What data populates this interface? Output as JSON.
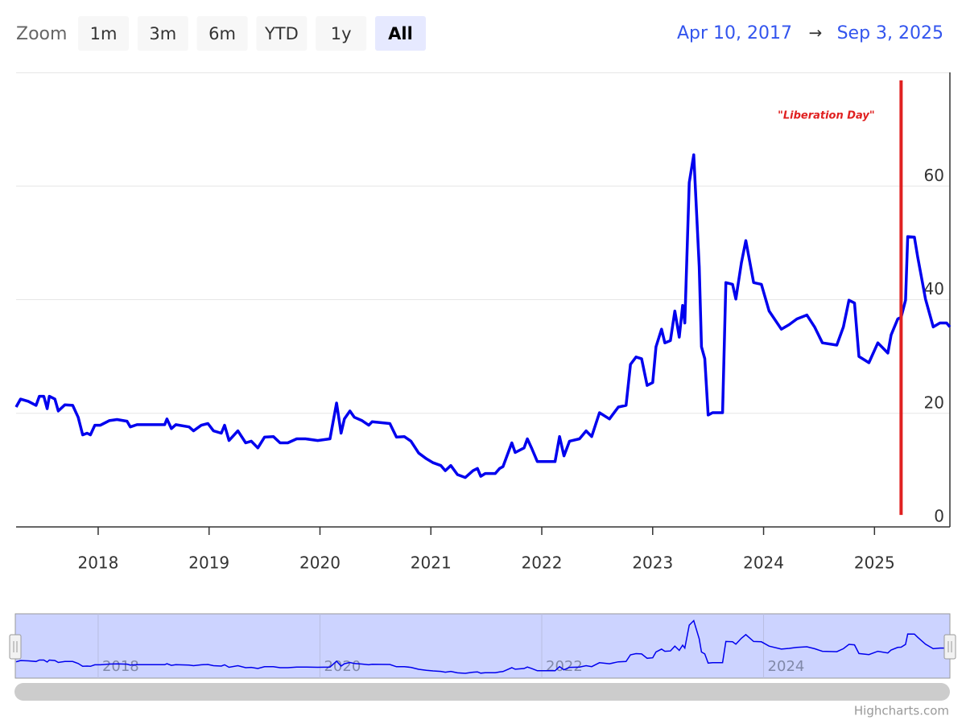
{
  "range_selector": {
    "label": "Zoom",
    "buttons": [
      "1m",
      "3m",
      "6m",
      "YTD",
      "1y",
      "All"
    ],
    "selected": 5,
    "from": "Apr 10, 2017",
    "arrow": "→",
    "to": "Sep 3, 2025"
  },
  "chart_data": {
    "type": "line",
    "x": [
      2017.26,
      2017.3,
      2017.37,
      2017.44,
      2017.47,
      2017.51,
      2017.54,
      2017.56,
      2017.61,
      2017.64,
      2017.7,
      2017.77,
      2017.82,
      2017.86,
      2017.9,
      2017.93,
      2017.97,
      2018.02,
      2018.1,
      2018.17,
      2018.26,
      2018.29,
      2018.35,
      2018.6,
      2018.62,
      2018.66,
      2018.7,
      2018.82,
      2018.86,
      2018.93,
      2018.99,
      2019.04,
      2019.11,
      2019.14,
      2019.18,
      2019.26,
      2019.33,
      2019.38,
      2019.44,
      2019.5,
      2019.58,
      2019.64,
      2019.71,
      2019.79,
      2019.87,
      2019.98,
      2020.09,
      2020.15,
      2020.19,
      2020.22,
      2020.27,
      2020.31,
      2020.38,
      2020.44,
      2020.47,
      2020.63,
      2020.69,
      2020.76,
      2020.82,
      2020.89,
      2020.96,
      2021.02,
      2021.09,
      2021.13,
      2021.18,
      2021.24,
      2021.31,
      2021.38,
      2021.42,
      2021.45,
      2021.49,
      2021.58,
      2021.62,
      2021.65,
      2021.73,
      2021.76,
      2021.84,
      2021.87,
      2021.91,
      2021.96,
      2022.12,
      2022.16,
      2022.2,
      2022.25,
      2022.34,
      2022.4,
      2022.45,
      2022.52,
      2022.61,
      2022.69,
      2022.76,
      2022.8,
      2022.85,
      2022.9,
      2022.95,
      2023.0,
      2023.03,
      2023.08,
      2023.11,
      2023.16,
      2023.2,
      2023.24,
      2023.27,
      2023.29,
      2023.33,
      2023.37,
      2023.42,
      2023.44,
      2023.47,
      2023.5,
      2023.54,
      2023.63,
      2023.66,
      2023.72,
      2023.75,
      2023.8,
      2023.84,
      2023.91,
      2023.98,
      2024.05,
      2024.16,
      2024.23,
      2024.3,
      2024.39,
      2024.46,
      2024.53,
      2024.66,
      2024.72,
      2024.77,
      2024.82,
      2024.86,
      2024.95,
      2025.03,
      2025.12,
      2025.15,
      2025.21,
      2025.24,
      2025.28,
      2025.3,
      2025.36,
      2025.39,
      2025.46,
      2025.53,
      2025.59,
      2025.65,
      2025.68
    ],
    "series": [
      {
        "color": "#0000ee",
        "values": [
          21.1,
          22.5,
          22.1,
          21.4,
          23.0,
          23.0,
          20.8,
          23.0,
          22.5,
          20.4,
          21.5,
          21.4,
          19.3,
          16.2,
          16.5,
          16.2,
          17.9,
          17.9,
          18.7,
          18.9,
          18.6,
          17.6,
          18.0,
          18.0,
          19.0,
          17.3,
          18.0,
          17.6,
          16.9,
          17.9,
          18.2,
          16.9,
          16.5,
          17.9,
          15.2,
          16.9,
          14.8,
          15.1,
          13.9,
          15.8,
          15.9,
          14.8,
          14.8,
          15.5,
          15.5,
          15.2,
          15.5,
          21.8,
          16.5,
          19.0,
          20.4,
          19.3,
          18.7,
          17.9,
          18.5,
          18.2,
          15.8,
          15.9,
          15.1,
          13.0,
          12.0,
          11.3,
          10.8,
          9.9,
          10.8,
          9.2,
          8.7,
          9.9,
          10.3,
          8.9,
          9.4,
          9.4,
          10.3,
          10.6,
          14.8,
          13.1,
          13.9,
          15.5,
          13.8,
          11.5,
          11.5,
          15.9,
          12.5,
          15.1,
          15.5,
          16.9,
          15.9,
          20.1,
          19.0,
          21.1,
          21.4,
          28.6,
          29.9,
          29.6,
          24.9,
          25.4,
          31.7,
          34.8,
          32.4,
          32.8,
          38.0,
          33.4,
          39.0,
          35.9,
          60.6,
          65.5,
          45.8,
          31.7,
          29.6,
          19.7,
          20.1,
          20.1,
          43.0,
          42.7,
          40.1,
          46.5,
          50.4,
          43.0,
          42.7,
          38.0,
          34.8,
          35.6,
          36.6,
          37.3,
          35.2,
          32.4,
          32.0,
          35.2,
          39.9,
          39.4,
          30.0,
          28.9,
          32.4,
          30.6,
          33.8,
          36.6,
          36.9,
          39.9,
          51.1,
          51.0,
          47.5,
          40.1,
          35.2,
          35.9,
          35.9,
          35.2
        ]
      }
    ],
    "xlim": [
      2017.26,
      2025.68
    ],
    "xticks": [
      2018,
      2019,
      2020,
      2021,
      2022,
      2023,
      2024,
      2025
    ],
    "ylim": [
      0,
      80
    ],
    "yticks": [
      0,
      20,
      40,
      60
    ],
    "grid": true,
    "annotation": {
      "x": 2025.24,
      "y_range": [
        2.1,
        78.6
      ],
      "text": "\"Liberation Day\"",
      "color": "#e02020"
    },
    "navigator_xticks": [
      2018,
      2020,
      2022,
      2024
    ],
    "credits": "Highcharts.com"
  }
}
